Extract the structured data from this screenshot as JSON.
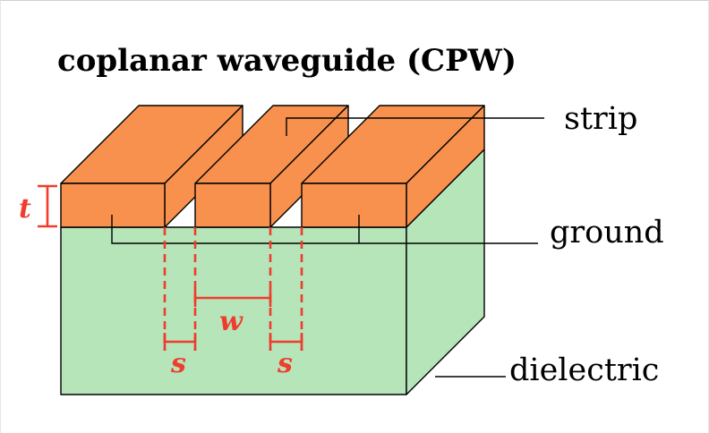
{
  "title": "coplanar waveguide (CPW)",
  "labels": {
    "strip": "strip",
    "ground": "ground",
    "dielectric": "dielectric"
  },
  "dimensions": {
    "thickness": "t",
    "width": "w",
    "gap_left": "s",
    "gap_right": "s"
  },
  "colors": {
    "conductor": "#f7914d",
    "dielectric": "#b5e5b9",
    "dimension": "#f03c2d",
    "outline": "#000000"
  }
}
